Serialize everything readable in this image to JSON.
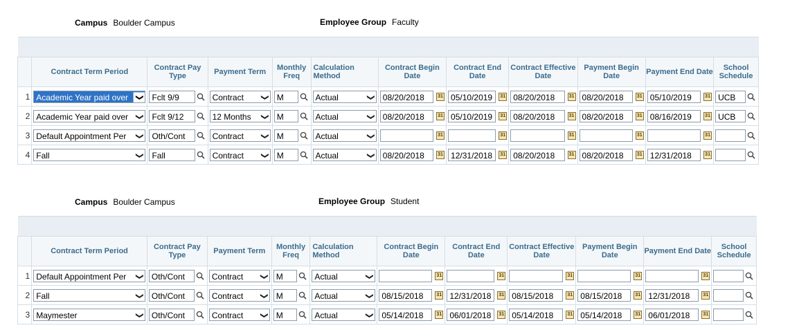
{
  "sections": [
    {
      "campus_label": "Campus",
      "campus_value": "Boulder Campus",
      "group_label": "Employee Group",
      "group_value": "Faculty",
      "rows": [
        {
          "num": "1",
          "period": "Academic Year paid over",
          "pay_type": "Fclt 9/9",
          "payment_term": "Contract",
          "freq": "M",
          "calc": "Actual",
          "cbegin": "08/20/2018",
          "cend": "05/10/2019",
          "ceff": "08/20/2018",
          "pbegin": "08/20/2018",
          "pend": "05/10/2019",
          "school": "UCB"
        },
        {
          "num": "2",
          "period": "Academic Year paid over",
          "pay_type": "Fclt 9/12",
          "payment_term": "12 Months",
          "freq": "M",
          "calc": "Actual",
          "cbegin": "08/20/2018",
          "cend": "05/10/2019",
          "ceff": "08/20/2018",
          "pbegin": "08/20/2018",
          "pend": "08/16/2019",
          "school": "UCB"
        },
        {
          "num": "3",
          "period": "Default Appointment Per",
          "pay_type": "Oth/Cont",
          "payment_term": "Contract",
          "freq": "M",
          "calc": "Actual",
          "cbegin": "",
          "cend": "",
          "ceff": "",
          "pbegin": "",
          "pend": "",
          "school": ""
        },
        {
          "num": "4",
          "period": "Fall",
          "pay_type": "Fall",
          "payment_term": "Contract",
          "freq": "M",
          "calc": "Actual",
          "cbegin": "08/20/2018",
          "cend": "12/31/2018",
          "ceff": "08/20/2018",
          "pbegin": "08/20/2018",
          "pend": "12/31/2018",
          "school": ""
        }
      ]
    },
    {
      "campus_label": "Campus",
      "campus_value": "Boulder Campus",
      "group_label": "Employee Group",
      "group_value": "Student",
      "rows": [
        {
          "num": "1",
          "period": "Default Appointment Per",
          "pay_type": "Oth/Cont",
          "payment_term": "Contract",
          "freq": "M",
          "calc": "Actual",
          "cbegin": "",
          "cend": "",
          "ceff": "",
          "pbegin": "",
          "pend": "",
          "school": ""
        },
        {
          "num": "2",
          "period": "Fall",
          "pay_type": "Oth/Cont",
          "payment_term": "Contract",
          "freq": "M",
          "calc": "Actual",
          "cbegin": "08/15/2018",
          "cend": "12/31/2018",
          "ceff": "08/15/2018",
          "pbegin": "08/15/2018",
          "pend": "12/31/2018",
          "school": ""
        },
        {
          "num": "3",
          "period": "Maymester",
          "pay_type": "Oth/Cont",
          "payment_term": "Contract",
          "freq": "M",
          "calc": "Actual",
          "cbegin": "05/14/2018",
          "cend": "06/01/2018",
          "ceff": "05/14/2018",
          "pbegin": "05/14/2018",
          "pend": "06/01/2018",
          "school": ""
        }
      ]
    }
  ],
  "columns": {
    "period": "Contract Term Period",
    "pay_type": "Contract Pay Type",
    "payment_term": "Payment Term",
    "freq": "Monthly Freq",
    "calc": "Calculation Method",
    "cbegin": "Contract Begin Date",
    "cend": "Contract End Date",
    "ceff": "Contract Effective Date",
    "pbegin": "Payment Begin Date",
    "pend": "Payment End Date",
    "school": "School Schedule"
  },
  "icons": {
    "lookup": "magnifier-icon",
    "calendar": "calendar-icon",
    "dropdown": "chevron-down-icon"
  },
  "colors": {
    "header_text": "#3b6c8e",
    "selection": "#2f73c6"
  }
}
